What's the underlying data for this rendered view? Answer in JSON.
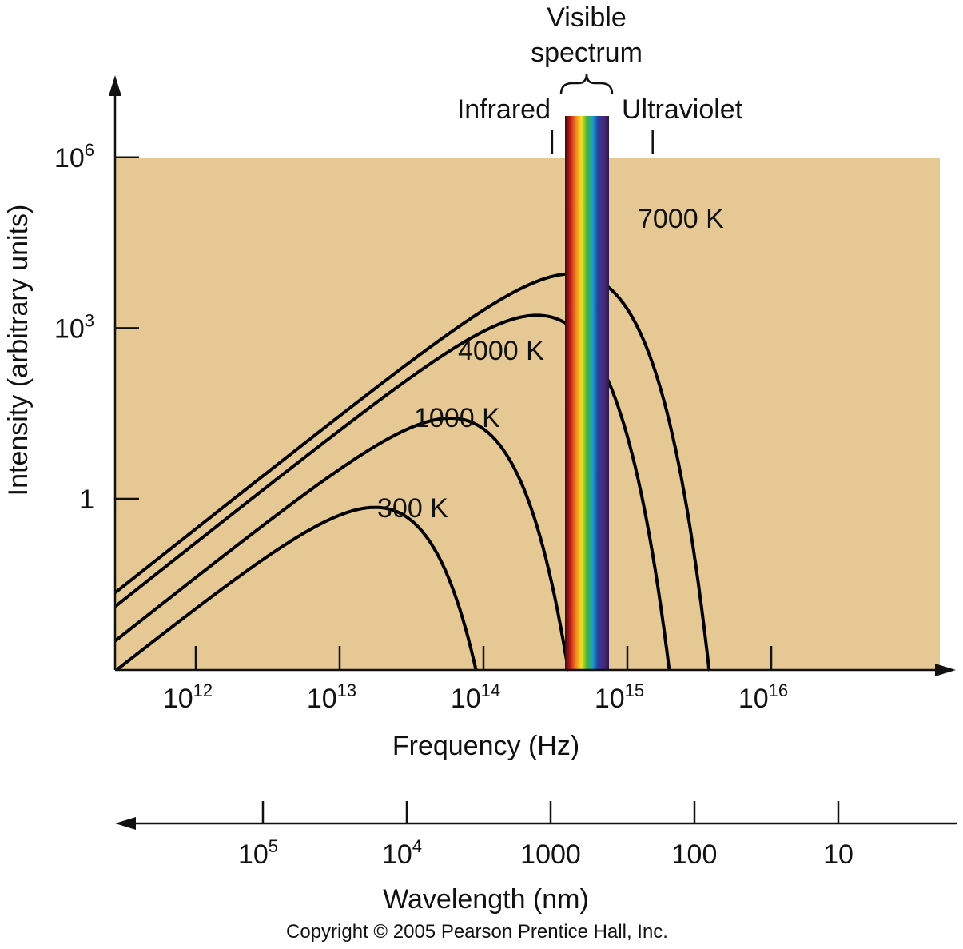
{
  "chart_data": {
    "type": "line",
    "x_scale": "log",
    "y_scale": "log",
    "xlabel": "Frequency (Hz)",
    "ylabel": "Intensity (arbitrary units)",
    "x_tick_labels": [
      {
        "value": 1000000000000.0,
        "base": "10",
        "exp": "12"
      },
      {
        "value": 10000000000000.0,
        "base": "10",
        "exp": "13"
      },
      {
        "value": 100000000000000.0,
        "base": "10",
        "exp": "14"
      },
      {
        "value": 1000000000000000.0,
        "base": "10",
        "exp": "15"
      },
      {
        "value": 1e+16,
        "base": "10",
        "exp": "16"
      }
    ],
    "y_tick_labels": [
      {
        "value": 1,
        "base": "1",
        "exp": ""
      },
      {
        "value": 1000,
        "base": "10",
        "exp": "3"
      },
      {
        "value": 1000000,
        "base": "10",
        "exp": "6"
      }
    ],
    "series": [
      {
        "name": "300 K",
        "temperature_K": 300
      },
      {
        "name": "1000 K",
        "temperature_K": 1000
      },
      {
        "name": "4000 K",
        "temperature_K": 4000
      },
      {
        "name": "7000 K",
        "temperature_K": 7000
      }
    ],
    "secondary_axis": {
      "label": "Wavelength (nm)",
      "tick_labels": [
        {
          "value_nm": 100000,
          "base": "10",
          "exp": "5"
        },
        {
          "value_nm": 10000,
          "base": "10",
          "exp": "4"
        },
        {
          "value_nm": 1000,
          "base": "1000",
          "exp": ""
        },
        {
          "value_nm": 100,
          "base": "100",
          "exp": ""
        },
        {
          "value_nm": 10,
          "base": "10",
          "exp": ""
        }
      ]
    },
    "regions": {
      "visible_label_line1": "Visible",
      "visible_label_line2": "spectrum",
      "infrared_label": "Infrared",
      "ultraviolet_label": "Ultraviolet",
      "infrared_boundary_hz": 300000000000000.0,
      "ultraviolet_boundary_hz": 1500000000000000.0
    },
    "colors": {
      "plot_background": "#e5c893",
      "curves": "#000000",
      "spectrum": [
        "#3a0a0a",
        "#c81e1e",
        "#f08a1e",
        "#f5e11e",
        "#3cb43c",
        "#1ea0c8",
        "#2a3ca0",
        "#4a2a7a",
        "#2a1a4a"
      ]
    }
  },
  "copyright": "Copyright © 2005 Pearson Prentice Hall, Inc."
}
